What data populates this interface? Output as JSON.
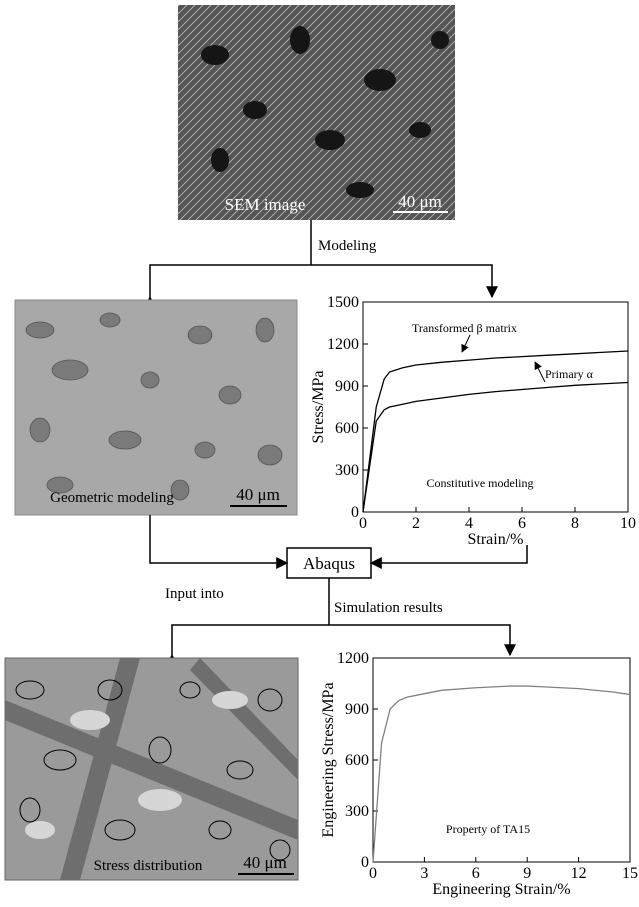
{
  "sem": {
    "label": "SEM image",
    "scale": "40 μm"
  },
  "flow": {
    "modeling": "Modeling",
    "input": "Input into",
    "abaqus": "Abaqus",
    "simulation": "Simulation results"
  },
  "geometric": {
    "label": "Geometric modeling",
    "scale": "40 μm"
  },
  "stress": {
    "label": "Stress distribution",
    "scale": "40 μm"
  },
  "chart_data": [
    {
      "type": "line",
      "x_label": "Strain/%",
      "y_label": "Stress/MPa",
      "annotation": "Constitutive modeling",
      "xlim": [
        0,
        10
      ],
      "ylim": [
        0,
        1500
      ],
      "xticks": [
        0,
        2,
        4,
        6,
        8,
        10
      ],
      "yticks": [
        0,
        300,
        600,
        900,
        1200,
        1500
      ],
      "series": [
        {
          "name": "Transformed β matrix",
          "color": "#000000",
          "x": [
            0,
            0.5,
            0.8,
            1,
            1.5,
            2,
            3,
            4,
            5,
            6,
            7,
            8,
            9,
            10
          ],
          "values": [
            0,
            750,
            950,
            1000,
            1030,
            1050,
            1070,
            1085,
            1100,
            1110,
            1120,
            1130,
            1140,
            1150
          ]
        },
        {
          "name": "Primary α",
          "color": "#000000",
          "x": [
            0,
            0.5,
            0.8,
            1,
            1.5,
            2,
            3,
            4,
            5,
            6,
            7,
            8,
            9,
            10
          ],
          "values": [
            0,
            650,
            730,
            750,
            770,
            790,
            815,
            840,
            860,
            875,
            890,
            905,
            915,
            925
          ]
        }
      ]
    },
    {
      "type": "line",
      "x_label": "Engineering Strain/%",
      "y_label": "Engineering Stress/MPa",
      "annotation": "Property of TA15",
      "xlim": [
        0,
        15
      ],
      "ylim": [
        0,
        1200
      ],
      "xticks": [
        0,
        3,
        6,
        9,
        12,
        15
      ],
      "yticks": [
        0,
        300,
        600,
        900,
        1200
      ],
      "series": [
        {
          "color": "#808080",
          "x": [
            0,
            0.5,
            1,
            1.5,
            2,
            3,
            4,
            6,
            8,
            9,
            10,
            12,
            14,
            15
          ],
          "values": [
            0,
            700,
            900,
            950,
            970,
            990,
            1010,
            1025,
            1035,
            1035,
            1030,
            1020,
            1000,
            985
          ]
        }
      ]
    }
  ]
}
